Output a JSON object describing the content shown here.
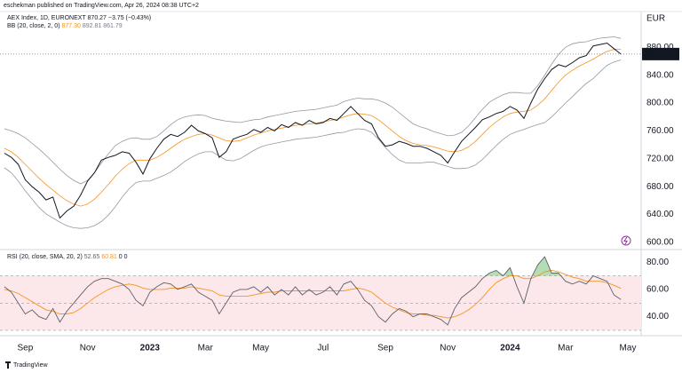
{
  "header": {
    "published": "eschekman published on TradingView.com, Apr 26, 2024 08:38 UTC+2"
  },
  "chart_data": [
    {
      "type": "line",
      "currency": "EUR",
      "legend": {
        "symbol": "AEX Index, 1D, EURONEXT",
        "quote": "870.27 −3.75 (−0.43%)",
        "indicator": "BB (20, close, 2, 0)",
        "basis": "877.30",
        "upper": "892.81",
        "lower": "861.79"
      },
      "last_price": 870.27,
      "categories": [
        null,
        null,
        null,
        "Sep",
        null,
        null,
        null,
        null,
        null,
        null,
        null,
        null,
        "Nov",
        null,
        null,
        null,
        null,
        null,
        null,
        null,
        null,
        "2023",
        null,
        null,
        null,
        null,
        null,
        null,
        null,
        "Mar",
        null,
        null,
        null,
        null,
        null,
        null,
        null,
        "May",
        null,
        null,
        null,
        null,
        null,
        null,
        null,
        null,
        "Jul",
        null,
        null,
        null,
        null,
        null,
        null,
        null,
        null,
        "Sep",
        null,
        null,
        null,
        null,
        null,
        null,
        null,
        null,
        "Nov",
        null,
        null,
        null,
        null,
        null,
        null,
        null,
        null,
        "2024",
        null,
        null,
        null,
        null,
        null,
        null,
        null,
        "Mar",
        null,
        null,
        null,
        null,
        null,
        null,
        null,
        null,
        "May"
      ],
      "series": [
        {
          "color": "#131722",
          "values": [
            728,
            722,
            712,
            690,
            680,
            672,
            661,
            665,
            635,
            645,
            652,
            668,
            688,
            700,
            718,
            722,
            725,
            730,
            728,
            715,
            698,
            720,
            735,
            748,
            755,
            752,
            758,
            768,
            760,
            756,
            750,
            722,
            730,
            748,
            752,
            755,
            762,
            758,
            765,
            760,
            769,
            765,
            772,
            768,
            775,
            770,
            772,
            778,
            775,
            785,
            795,
            785,
            775,
            770,
            750,
            738,
            740,
            745,
            742,
            738,
            738,
            735,
            730,
            725,
            714,
            730,
            745,
            755,
            765,
            776,
            780,
            785,
            788,
            795,
            790,
            778,
            800,
            820,
            835,
            848,
            855,
            852,
            858,
            865,
            868,
            882,
            884,
            886,
            878,
            870.27,
            null
          ]
        },
        {
          "color": "#f7931e",
          "values": [
            735,
            730,
            722,
            712,
            702,
            692,
            683,
            675,
            667,
            660,
            655,
            652,
            655,
            662,
            672,
            683,
            695,
            705,
            713,
            718,
            718,
            718,
            722,
            728,
            735,
            742,
            748,
            752,
            755,
            756,
            754,
            750,
            746,
            745,
            746,
            750,
            754,
            757,
            760,
            762,
            764,
            766,
            768,
            769,
            770,
            771,
            773,
            775,
            777,
            780,
            783,
            785,
            784,
            782,
            776,
            768,
            760,
            752,
            746,
            742,
            740,
            739,
            737,
            734,
            731,
            730,
            732,
            737,
            745,
            755,
            765,
            773,
            780,
            785,
            787,
            788,
            790,
            797,
            806,
            818,
            830,
            840,
            847,
            853,
            858,
            863,
            869,
            874,
            877,
            877.3,
            null
          ]
        },
        {
          "color": "#9598a1",
          "values": [
            763,
            760,
            756,
            750,
            742,
            734,
            725,
            715,
            705,
            696,
            689,
            684,
            689,
            700,
            714,
            727,
            739,
            745,
            749,
            750,
            748,
            748,
            752,
            760,
            769,
            776,
            780,
            782,
            783,
            782,
            778,
            776,
            774,
            773,
            772,
            774,
            776,
            777,
            780,
            782,
            784,
            786,
            788,
            789,
            790,
            791,
            793,
            795,
            797,
            802,
            805,
            807,
            806,
            806,
            804,
            800,
            794,
            786,
            778,
            770,
            766,
            763,
            759,
            756,
            753,
            754,
            758,
            767,
            779,
            791,
            801,
            807,
            812,
            815,
            815,
            814,
            814,
            825,
            840,
            856,
            870,
            880,
            885,
            887,
            888,
            891,
            893,
            894,
            895,
            892.81,
            null
          ]
        },
        {
          "color": "#9598a1",
          "values": [
            707,
            700,
            688,
            674,
            662,
            650,
            641,
            635,
            629,
            624,
            621,
            620,
            621,
            624,
            630,
            639,
            651,
            665,
            677,
            686,
            688,
            688,
            692,
            696,
            701,
            708,
            716,
            722,
            727,
            730,
            730,
            724,
            718,
            717,
            720,
            726,
            732,
            737,
            740,
            742,
            744,
            746,
            748,
            749,
            750,
            751,
            753,
            755,
            757,
            758,
            761,
            763,
            762,
            758,
            748,
            736,
            726,
            718,
            714,
            714,
            714,
            715,
            715,
            712,
            709,
            706,
            706,
            707,
            711,
            719,
            729,
            739,
            748,
            755,
            759,
            762,
            766,
            769,
            772,
            780,
            790,
            800,
            809,
            819,
            828,
            835,
            845,
            854,
            859,
            861.79,
            null
          ]
        }
      ],
      "ylim": [
        591,
        930
      ],
      "yticks": [
        {
          "value": 600,
          "label": "600.00"
        },
        {
          "value": 640,
          "label": "640.00"
        },
        {
          "value": 680,
          "label": "680.00"
        },
        {
          "value": 720,
          "label": "720.00"
        },
        {
          "value": 760,
          "label": "760.00"
        },
        {
          "value": 800,
          "label": "800.00"
        },
        {
          "value": 840,
          "label": "840.00"
        },
        {
          "value": 880,
          "label": "880.00"
        }
      ]
    },
    {
      "type": "line",
      "legend": {
        "indicator": "RSI (20, close, SMA, 20, 2)",
        "rsi": "52.65",
        "sma": "60.81",
        "upper": "0",
        "lower": "0"
      },
      "bands": [
        70,
        50,
        30
      ],
      "band_fill": "#fce8ea",
      "overbought_fill": "#81c784",
      "series": [
        {
          "color": "#5d606b",
          "values": [
            62,
            58,
            50,
            42,
            45,
            40,
            38,
            46,
            36,
            44,
            50,
            56,
            62,
            66,
            68,
            68,
            66,
            64,
            60,
            52,
            48,
            58,
            62,
            65,
            64,
            60,
            62,
            64,
            58,
            55,
            52,
            42,
            50,
            58,
            60,
            60,
            62,
            58,
            62,
            56,
            60,
            56,
            62,
            56,
            60,
            56,
            58,
            62,
            56,
            64,
            66,
            60,
            52,
            48,
            40,
            36,
            42,
            46,
            44,
            40,
            42,
            42,
            40,
            38,
            34,
            46,
            54,
            58,
            62,
            68,
            72,
            74,
            70,
            76,
            62,
            50,
            68,
            78,
            84,
            72,
            72,
            66,
            64,
            66,
            64,
            70,
            68,
            66,
            56,
            52.65,
            null
          ]
        },
        {
          "color": "#f7931e",
          "values": [
            60,
            59,
            57,
            54,
            51,
            48,
            45,
            44,
            42,
            42,
            43,
            46,
            50,
            54,
            57,
            60,
            62,
            63,
            64,
            63,
            61,
            60,
            60,
            60,
            61,
            61,
            61,
            62,
            61,
            60,
            59,
            56,
            55,
            55,
            55,
            55,
            56,
            57,
            58,
            58,
            59,
            59,
            59,
            59,
            59,
            59,
            59,
            59,
            59,
            59,
            60,
            61,
            60,
            58,
            54,
            50,
            47,
            45,
            43,
            42,
            42,
            41,
            41,
            40,
            39,
            40,
            42,
            45,
            49,
            54,
            60,
            65,
            68,
            70,
            70,
            68,
            68,
            70,
            73,
            74,
            73,
            71,
            69,
            68,
            66,
            66,
            66,
            65,
            63,
            60.81,
            null
          ]
        }
      ],
      "ylim": [
        28,
        88
      ],
      "yticks": [
        {
          "value": 40,
          "label": "40.00"
        },
        {
          "value": 60,
          "label": "60.00"
        },
        {
          "value": 80,
          "label": "80.00"
        }
      ]
    }
  ],
  "footer": {
    "brand": "TradingView"
  }
}
